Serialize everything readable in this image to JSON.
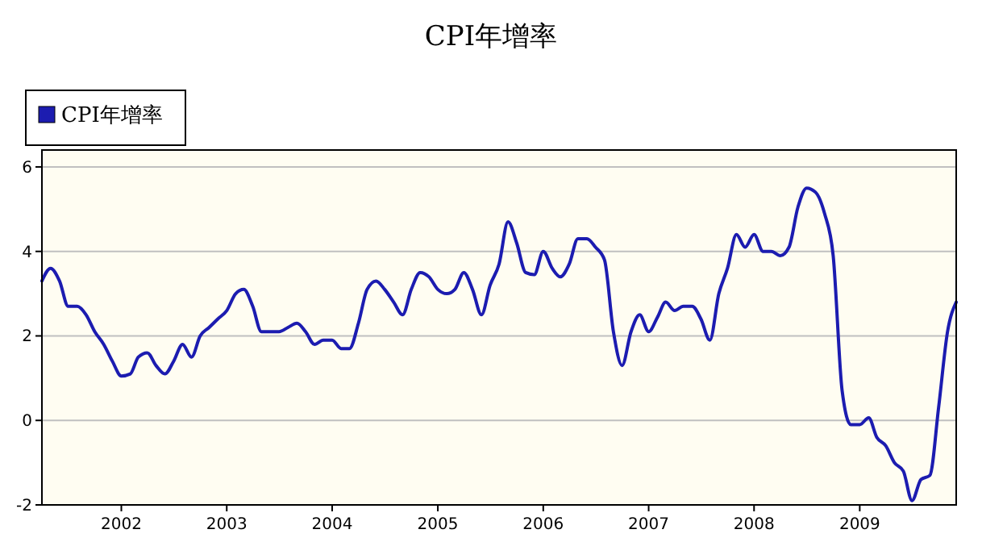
{
  "chart_data": {
    "type": "line",
    "title": "CPI年增率",
    "legend": "top left",
    "grid": "y",
    "line_style": "solid",
    "marker": "none",
    "xlim": [
      "2001-04",
      "2009-12"
    ],
    "xticks": [
      {
        "value": "2002",
        "label": "2002"
      },
      {
        "value": "2003",
        "label": "2003"
      },
      {
        "value": "2004",
        "label": "2004"
      },
      {
        "value": "2005",
        "label": "2005"
      },
      {
        "value": "2006",
        "label": "2006"
      },
      {
        "value": "2007",
        "label": "2007"
      },
      {
        "value": "2008",
        "label": "2008"
      },
      {
        "value": "2009",
        "label": "2009"
      }
    ],
    "ylim": [
      -2,
      6.4
    ],
    "yticks": [
      -2,
      0,
      2,
      4,
      6
    ],
    "x": [
      "2001-04",
      "2001-05",
      "2001-06",
      "2001-07",
      "2001-08",
      "2001-09",
      "2001-10",
      "2001-11",
      "2001-12",
      "2002-01",
      "2002-02",
      "2002-03",
      "2002-04",
      "2002-05",
      "2002-06",
      "2002-07",
      "2002-08",
      "2002-09",
      "2002-10",
      "2002-11",
      "2002-12",
      "2003-01",
      "2003-02",
      "2003-03",
      "2003-04",
      "2003-05",
      "2003-06",
      "2003-07",
      "2003-08",
      "2003-09",
      "2003-10",
      "2003-11",
      "2003-12",
      "2004-01",
      "2004-02",
      "2004-03",
      "2004-04",
      "2004-05",
      "2004-06",
      "2004-07",
      "2004-08",
      "2004-09",
      "2004-10",
      "2004-11",
      "2004-12",
      "2005-01",
      "2005-02",
      "2005-03",
      "2005-04",
      "2005-05",
      "2005-06",
      "2005-07",
      "2005-08",
      "2005-09",
      "2005-10",
      "2005-11",
      "2005-12",
      "2006-01",
      "2006-02",
      "2006-03",
      "2006-04",
      "2006-05",
      "2006-06",
      "2006-07",
      "2006-08",
      "2006-09",
      "2006-10",
      "2006-11",
      "2006-12",
      "2007-01",
      "2007-02",
      "2007-03",
      "2007-04",
      "2007-05",
      "2007-06",
      "2007-07",
      "2007-08",
      "2007-09",
      "2007-10",
      "2007-11",
      "2007-12",
      "2008-01",
      "2008-02",
      "2008-03",
      "2008-04",
      "2008-05",
      "2008-06",
      "2008-07",
      "2008-08",
      "2008-09",
      "2008-10",
      "2008-11",
      "2008-12",
      "2009-01",
      "2009-02",
      "2009-03",
      "2009-04",
      "2009-05",
      "2009-06",
      "2009-07",
      "2009-08",
      "2009-09",
      "2009-10",
      "2009-11",
      "2009-12"
    ],
    "series": [
      {
        "name": "CPI年增率",
        "color": "#1c1cb0",
        "values": [
          3.3,
          3.6,
          3.3,
          2.7,
          2.7,
          2.5,
          2.1,
          1.8,
          1.4,
          1.05,
          1.1,
          1.5,
          1.6,
          1.3,
          1.1,
          1.4,
          1.8,
          1.5,
          2.0,
          2.2,
          2.4,
          2.6,
          3.0,
          3.1,
          2.7,
          2.1,
          2.1,
          2.1,
          2.2,
          2.3,
          2.1,
          1.8,
          1.9,
          1.9,
          1.7,
          1.7,
          2.3,
          3.1,
          3.3,
          3.1,
          2.8,
          2.5,
          3.1,
          3.5,
          3.4,
          3.1,
          3.0,
          3.1,
          3.5,
          3.1,
          2.5,
          3.2,
          3.7,
          4.7,
          4.2,
          3.5,
          3.45,
          4.0,
          3.6,
          3.4,
          3.7,
          4.3,
          4.3,
          4.1,
          3.8,
          2.1,
          1.3,
          2.1,
          2.5,
          2.1,
          2.45,
          2.8,
          2.6,
          2.7,
          2.7,
          2.4,
          1.9,
          3.0,
          3.6,
          4.4,
          4.1,
          4.4,
          4.0,
          4.0,
          3.9,
          4.1,
          5.05,
          5.5,
          5.4,
          4.9,
          3.9,
          0.7,
          -0.1,
          -0.1,
          0.06,
          -0.4,
          -0.6,
          -1.0,
          -1.2,
          -1.9,
          -1.4,
          -1.3,
          0.3,
          2.1,
          2.8
        ]
      }
    ]
  }
}
